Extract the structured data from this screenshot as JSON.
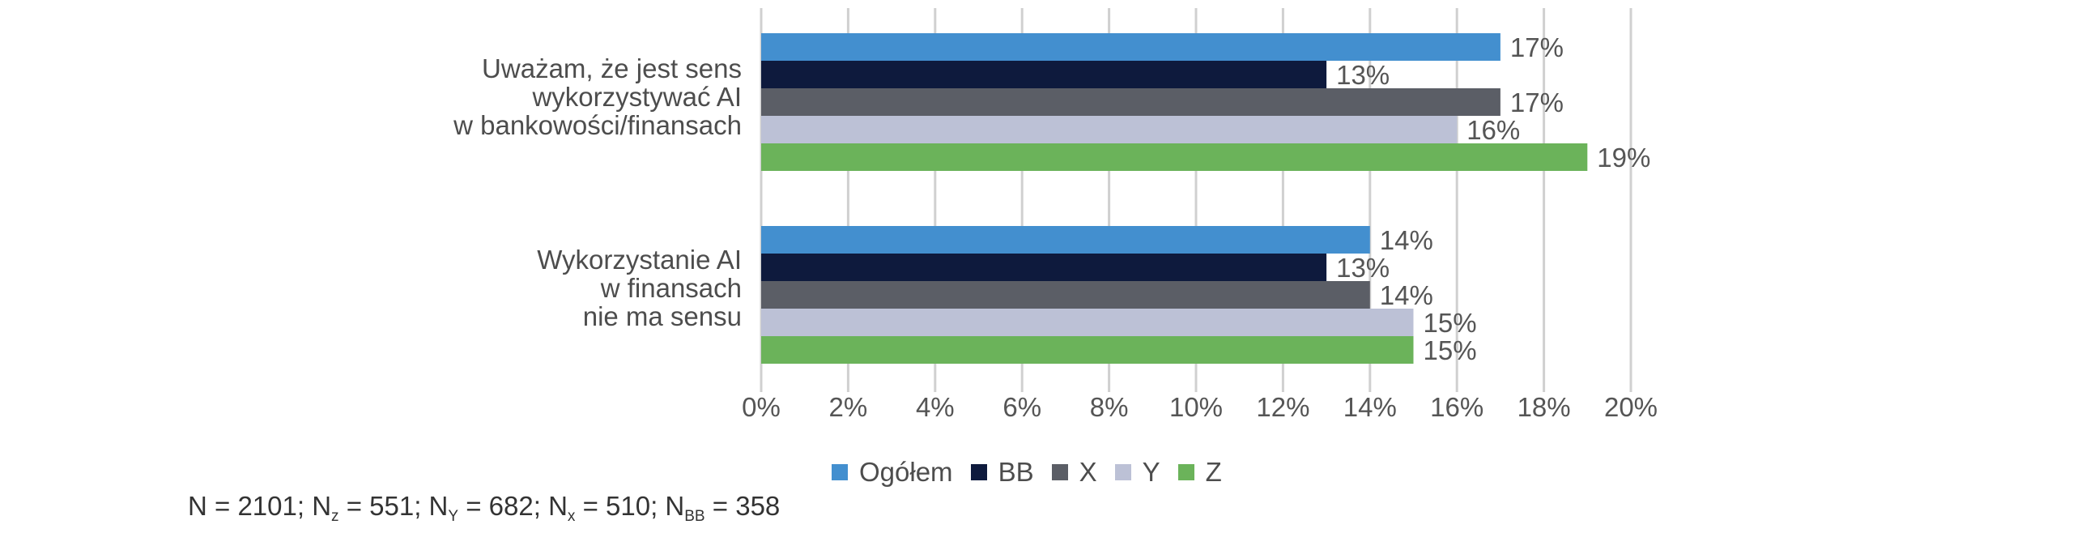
{
  "chart_data": {
    "type": "bar",
    "orientation": "horizontal",
    "categories": [
      [
        "Uważam, że jest sens",
        "wykorzystywać AI",
        "w bankowości/finansach"
      ],
      [
        "Wykorzystanie AI",
        "w finansach",
        "nie ma sensu"
      ]
    ],
    "series": [
      {
        "name": "Ogółem",
        "color": "#438fcf",
        "values": [
          17,
          14
        ]
      },
      {
        "name": "BB",
        "color": "#0e1a3d",
        "values": [
          13,
          13
        ]
      },
      {
        "name": "X",
        "color": "#5b5e66",
        "values": [
          17,
          14
        ]
      },
      {
        "name": "Y",
        "color": "#bcc1d6",
        "values": [
          16,
          15
        ]
      },
      {
        "name": "Z",
        "color": "#6bb35a",
        "values": [
          19,
          15
        ]
      }
    ],
    "value_suffix": "%",
    "xlim": [
      0,
      20
    ],
    "xticks": [
      "0%",
      "2%",
      "4%",
      "6%",
      "8%",
      "10%",
      "12%",
      "14%",
      "16%",
      "18%",
      "20%"
    ],
    "grid": "vertical",
    "legend_position": "bottom"
  },
  "footnote": {
    "n": "N = 2101; N",
    "z_sub": "z",
    "z_val": " = 551; N",
    "y_sub": "Y",
    "y_val": " = 682; N",
    "x_sub": "x",
    "x_val": " = 510; N",
    "bb_sub": "BB",
    "bb_val": " = 358"
  }
}
